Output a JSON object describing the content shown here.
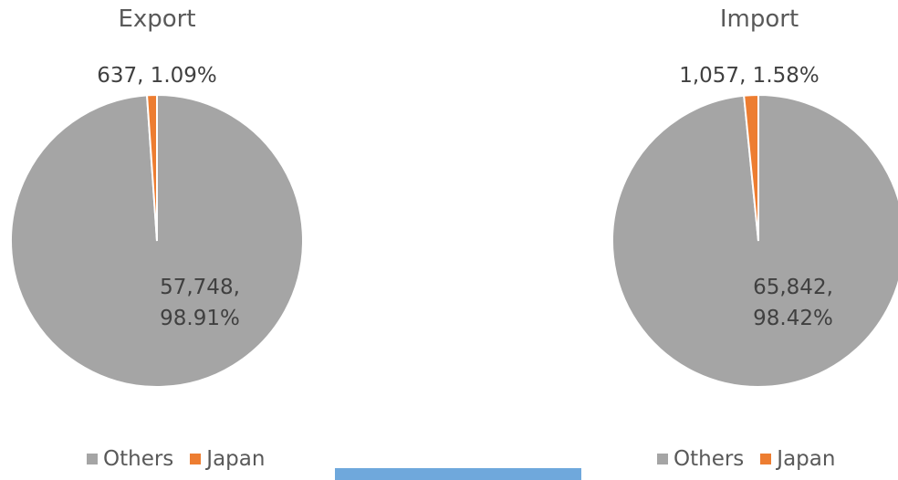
{
  "chart_data": [
    {
      "type": "pie",
      "title": "Export",
      "slices": [
        {
          "name": "Others",
          "value": 57748,
          "percent": "98.91%",
          "color": "#a5a5a5",
          "label_lines": [
            "57,748,",
            "98.91%"
          ]
        },
        {
          "name": "Japan",
          "value": 637,
          "percent": "1.09%",
          "color": "#ed7d31",
          "label_lines": [
            "637, 1.09%"
          ]
        }
      ],
      "legend": [
        {
          "name": "Others",
          "color": "#a5a5a5"
        },
        {
          "name": "Japan",
          "color": "#ed7d31"
        }
      ],
      "legend_position": "bottom"
    },
    {
      "type": "pie",
      "title": "Import",
      "slices": [
        {
          "name": "Others",
          "value": 65842,
          "percent": "98.42%",
          "color": "#a5a5a5",
          "label_lines": [
            "65,842,",
            "98.42%"
          ]
        },
        {
          "name": "Japan",
          "value": 1057,
          "percent": "1.58%",
          "color": "#ed7d31",
          "label_lines": [
            "1,057, 1.58%"
          ]
        }
      ],
      "legend": [
        {
          "name": "Others",
          "color": "#a5a5a5"
        },
        {
          "name": "Japan",
          "color": "#ed7d31"
        }
      ],
      "legend_position": "bottom"
    }
  ],
  "colors": {
    "others": "#a5a5a5",
    "japan": "#ed7d31",
    "accent_bar": "#6fa8dc"
  }
}
